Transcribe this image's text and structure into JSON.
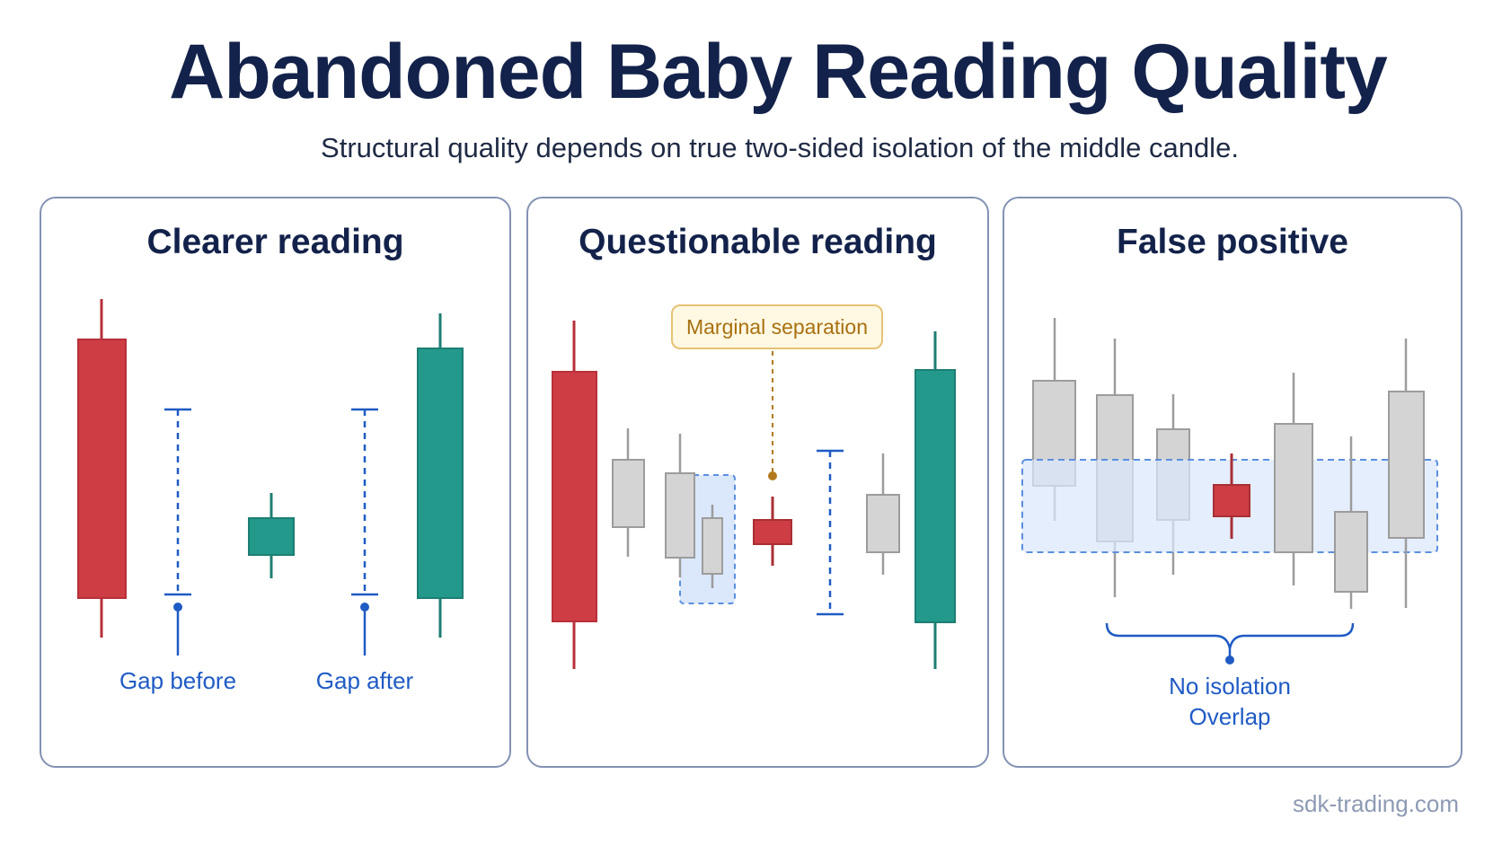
{
  "title": "Abandoned Baby Reading Quality",
  "subtitle": "Structural quality depends on true two-sided isolation of the middle candle.",
  "panels": [
    {
      "title": "Clearer reading",
      "labels": {
        "gap_before": "Gap before",
        "gap_after": "Gap after"
      }
    },
    {
      "title": "Questionable reading",
      "callout": "Marginal separation"
    },
    {
      "title": "False positive",
      "labels": {
        "line1": "No isolation",
        "line2": "Overlap"
      }
    }
  ],
  "footer": "sdk-trading.com",
  "colors": {
    "bearish": "#cd3d43",
    "bullish": "#22998b",
    "neutral": "#d4d4d4",
    "annotation_blue": "#1f5bc4",
    "callout_gold": "#a8700f",
    "title_navy": "#13224a"
  }
}
